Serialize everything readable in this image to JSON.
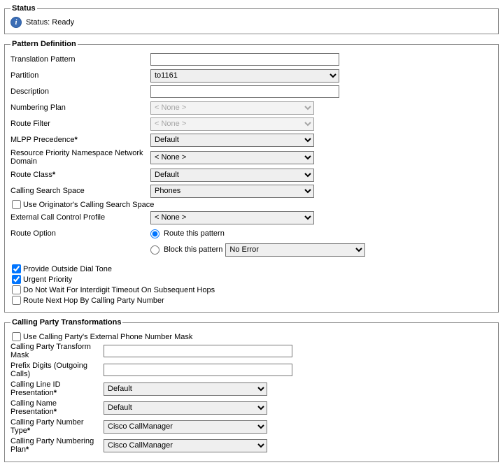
{
  "status": {
    "legend": "Status",
    "text": "Status: Ready"
  },
  "pattern": {
    "legend": "Pattern Definition",
    "translationPattern": {
      "label": "Translation Pattern",
      "value": ""
    },
    "partition": {
      "label": "Partition",
      "value": "to1161"
    },
    "description": {
      "label": "Description",
      "value": ""
    },
    "numberingPlan": {
      "label": "Numbering Plan",
      "value": "< None >"
    },
    "routeFilter": {
      "label": "Route Filter",
      "value": "< None >"
    },
    "mlpp": {
      "label": "MLPP Precedence",
      "value": "Default"
    },
    "rpnnd": {
      "label": "Resource Priority Namespace Network Domain",
      "value": "< None >"
    },
    "routeClass": {
      "label": "Route Class",
      "value": "Default"
    },
    "css": {
      "label": "Calling Search Space",
      "value": "Phones"
    },
    "useOrigCss": {
      "label": "Use Originator's Calling Search Space",
      "checked": false
    },
    "eccp": {
      "label": "External Call Control Profile",
      "value": "< None >"
    },
    "routeOption": {
      "label": "Route Option",
      "route": "Route this pattern",
      "block": "Block this pattern",
      "blockReason": "No Error",
      "selected": "route"
    },
    "provideDialTone": {
      "label": "Provide Outside Dial Tone",
      "checked": true
    },
    "urgentPriority": {
      "label": "Urgent Priority",
      "checked": true
    },
    "noWaitInterdigit": {
      "label": "Do Not Wait For Interdigit Timeout On Subsequent Hops",
      "checked": false
    },
    "routeNextHop": {
      "label": "Route Next Hop By Calling Party Number",
      "checked": false
    }
  },
  "callingParty": {
    "legend": "Calling Party Transformations",
    "useExternalMask": {
      "label": "Use Calling Party's External Phone Number Mask",
      "checked": false
    },
    "transformMask": {
      "label": "Calling Party Transform Mask",
      "value": ""
    },
    "prefixDigits": {
      "label": "Prefix Digits (Outgoing Calls)",
      "value": ""
    },
    "lineIdPresentation": {
      "label": "Calling Line ID Presentation",
      "value": "Default"
    },
    "namePresentation": {
      "label": "Calling Name Presentation",
      "value": "Default"
    },
    "numberType": {
      "label": "Calling Party Number Type",
      "value": "Cisco CallManager"
    },
    "numberingPlan": {
      "label": "Calling Party Numbering Plan",
      "value": "Cisco CallManager"
    }
  }
}
